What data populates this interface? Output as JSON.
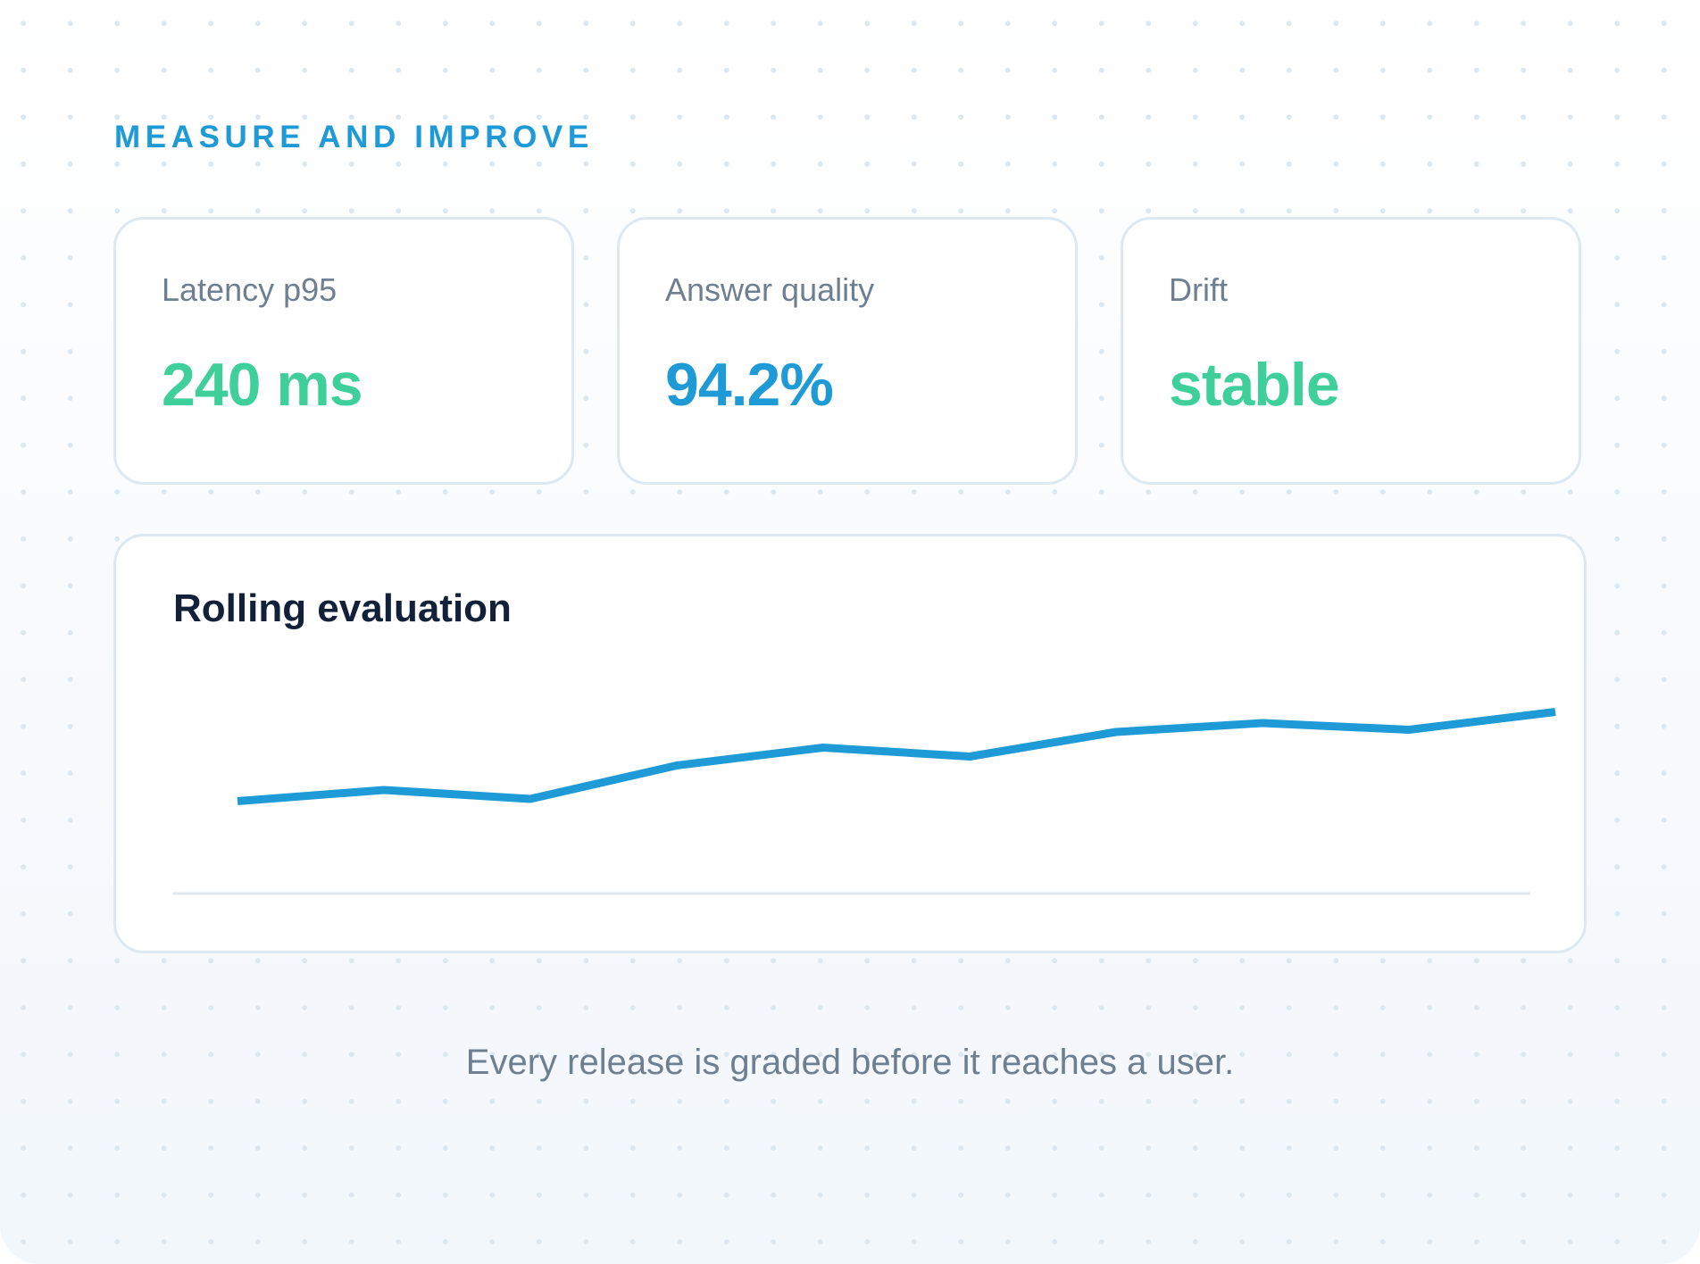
{
  "header": {
    "eyebrow": "MEASURE AND IMPROVE"
  },
  "stats": [
    {
      "label": "Latency p95",
      "value": "240 ms",
      "color": "#3ecf9a"
    },
    {
      "label": "Answer quality",
      "value": "94.2%",
      "color": "#1e9bd7"
    },
    {
      "label": "Drift",
      "value": "stable",
      "color": "#3ecf9a"
    }
  ],
  "chart": {
    "title": "Rolling evaluation",
    "line_color": "#1e9bd7",
    "baseline_color": "#dde8f1"
  },
  "chart_data": {
    "type": "line",
    "title": "Rolling evaluation",
    "xlabel": "",
    "ylabel": "",
    "x": [
      1,
      2,
      3,
      4,
      5,
      6,
      7,
      8,
      9,
      10
    ],
    "series": [
      {
        "values": [
          0.27,
          0.32,
          0.28,
          0.43,
          0.51,
          0.47,
          0.58,
          0.62,
          0.59,
          0.67
        ]
      }
    ],
    "ylim": [
      0,
      1
    ],
    "grid": false,
    "legend": "none"
  },
  "footer": {
    "caption": "Every release is graded before it reaches a user."
  }
}
